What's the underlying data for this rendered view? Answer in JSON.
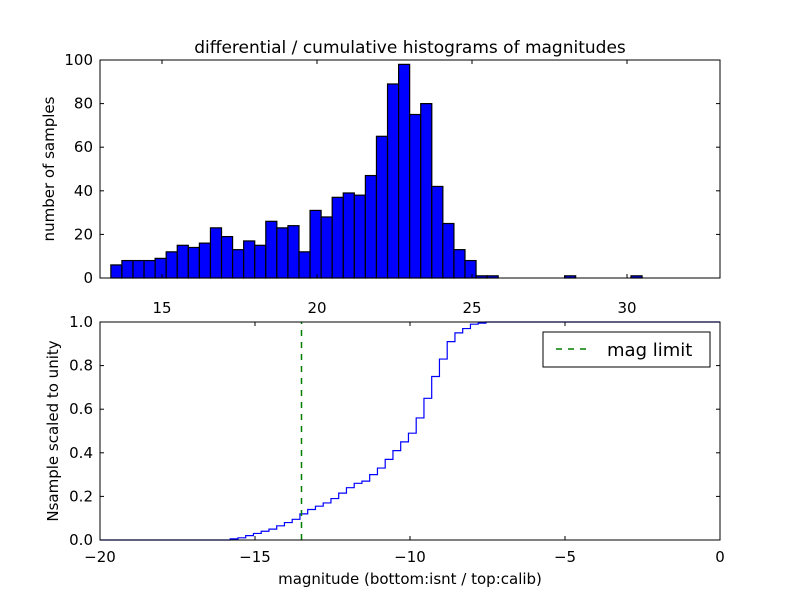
{
  "chart_data": [
    {
      "type": "bar",
      "title": "differential / cumulative histograms of magnitudes",
      "xlabel": "",
      "ylabel": "number of samples",
      "xlim": [
        13,
        33
      ],
      "ylim": [
        0,
        100
      ],
      "xticks": [
        15,
        20,
        25,
        30
      ],
      "yticks": [
        0,
        20,
        40,
        60,
        80,
        100
      ],
      "bin_start": 13.35,
      "bin_width": 0.357,
      "values": [
        6,
        8,
        8,
        8,
        9,
        12,
        15,
        14,
        16,
        23,
        19,
        13,
        17,
        15,
        26,
        23,
        24,
        12,
        31,
        28,
        37,
        39,
        38,
        47,
        65,
        89,
        98,
        75,
        80,
        42,
        25,
        13,
        8,
        1,
        1,
        0,
        0,
        0,
        0,
        0,
        0,
        1,
        0,
        0,
        0,
        0,
        0,
        1
      ],
      "color": "#0000ff",
      "xtick_position": "bottom-outside-below"
    },
    {
      "type": "line",
      "xlabel": "magnitude (bottom:isnt / top:calib)",
      "ylabel": "Nsample scaled to unity",
      "xlim": [
        -20,
        0
      ],
      "ylim": [
        0,
        1
      ],
      "xticks": [
        -20,
        -15,
        -10,
        -5,
        0
      ],
      "yticks": [
        0.0,
        0.2,
        0.4,
        0.6,
        0.8,
        1.0
      ],
      "step_start": -15.8,
      "step_width": 0.25,
      "values": [
        0.005,
        0.01,
        0.02,
        0.03,
        0.04,
        0.05,
        0.065,
        0.08,
        0.095,
        0.12,
        0.14,
        0.155,
        0.17,
        0.19,
        0.215,
        0.24,
        0.26,
        0.27,
        0.3,
        0.33,
        0.37,
        0.41,
        0.45,
        0.49,
        0.56,
        0.65,
        0.75,
        0.83,
        0.91,
        0.95,
        0.97,
        0.99,
        0.995,
        1.0
      ],
      "line_color": "#0000ff",
      "mag_limit": -13.5,
      "mag_limit_color": "#008000",
      "legend": [
        "mag limit"
      ],
      "legend_position": "top-right"
    }
  ]
}
